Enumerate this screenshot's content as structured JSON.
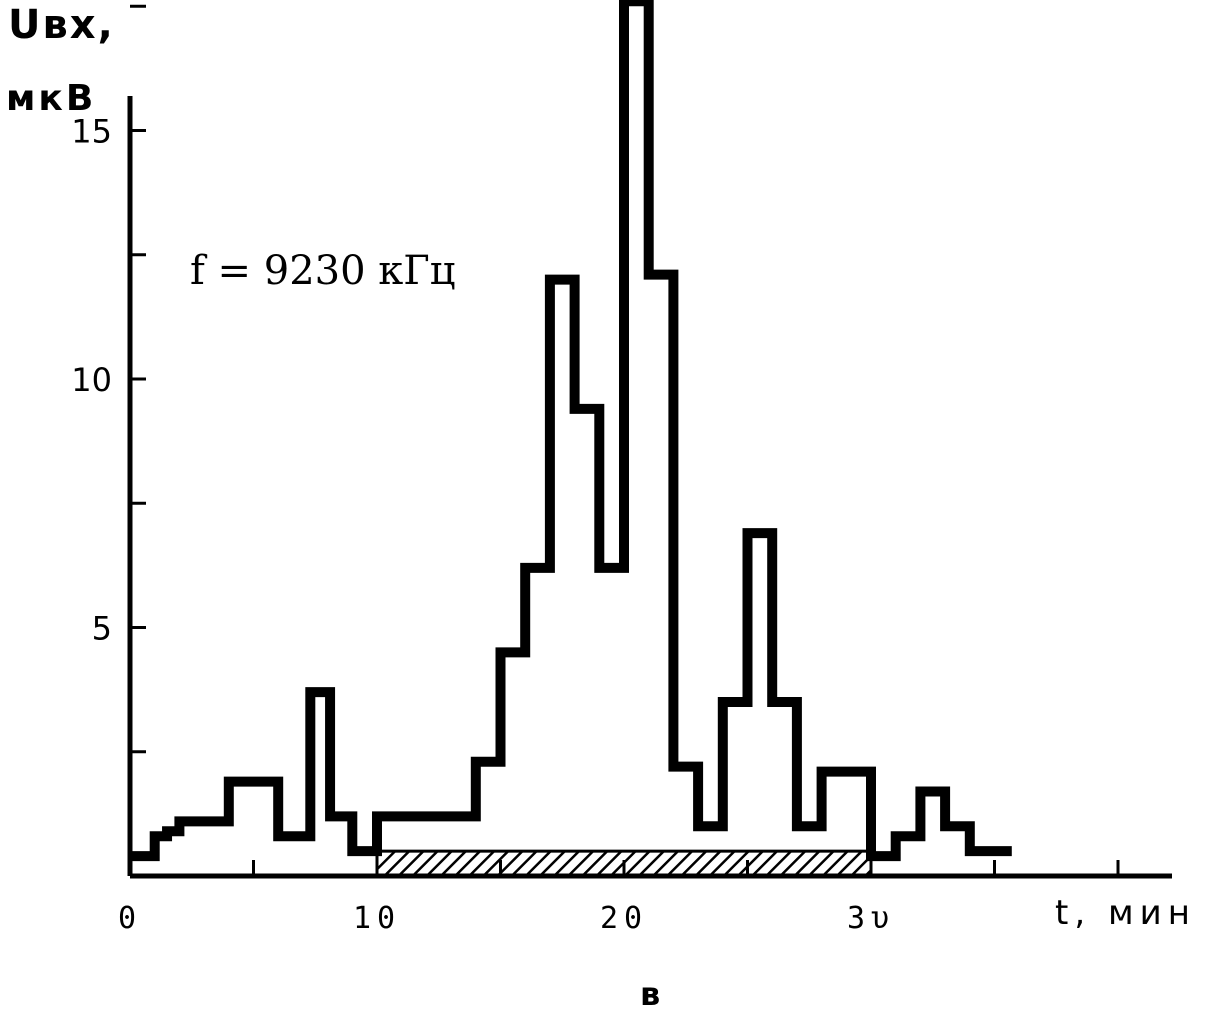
{
  "chart_data": {
    "type": "line",
    "step": true,
    "ylabel_line1": "Uвх,",
    "ylabel_line2": "мкВ",
    "xlabel": "t, мин",
    "annotation": "f = 9230 кГц",
    "panel_letter": "в",
    "xlim": [
      0,
      42
    ],
    "ylim": [
      0,
      17.5
    ],
    "x_ticks": [
      0,
      5,
      10,
      15,
      20,
      25,
      30,
      35,
      40
    ],
    "x_tick_labels": [
      {
        "value": 0,
        "text": "0"
      },
      {
        "value": 10,
        "text": "10"
      },
      {
        "value": 20,
        "text": "20"
      },
      {
        "value": 30,
        "text": "3υ"
      }
    ],
    "y_ticks": [
      2.5,
      5,
      7.5,
      10,
      12.5,
      15,
      17.5
    ],
    "y_tick_labels": [
      {
        "value": 5,
        "text": "5"
      },
      {
        "value": 10,
        "text": "10"
      },
      {
        "value": 15,
        "text": "15"
      }
    ],
    "series": [
      {
        "points": [
          [
            0,
            0.4
          ],
          [
            1,
            0.8
          ],
          [
            1.5,
            0.9
          ],
          [
            2,
            1.1
          ],
          [
            4,
            1.9
          ],
          [
            6,
            0.8
          ],
          [
            7.3,
            3.7
          ],
          [
            8.1,
            1.2
          ],
          [
            9,
            0.5
          ],
          [
            10,
            1.2
          ],
          [
            14,
            2.3
          ],
          [
            15,
            4.5
          ],
          [
            16,
            6.2
          ],
          [
            17,
            12
          ],
          [
            18,
            9.4
          ],
          [
            19,
            6.2
          ],
          [
            20,
            17.6
          ],
          [
            21,
            12.1
          ],
          [
            22,
            2.2
          ],
          [
            23,
            1
          ],
          [
            24,
            3.5
          ],
          [
            25,
            6.9
          ],
          [
            26,
            3.5
          ],
          [
            27,
            1
          ],
          [
            28,
            2.1
          ],
          [
            30,
            0.4
          ],
          [
            31,
            0.8
          ],
          [
            32,
            1.7
          ],
          [
            33,
            1
          ],
          [
            34,
            0.5
          ],
          [
            35.7,
            0.5
          ]
        ]
      }
    ],
    "shaded_band": {
      "x": [
        10,
        30
      ],
      "y": [
        0,
        0.5
      ],
      "pattern": "hatched"
    }
  }
}
